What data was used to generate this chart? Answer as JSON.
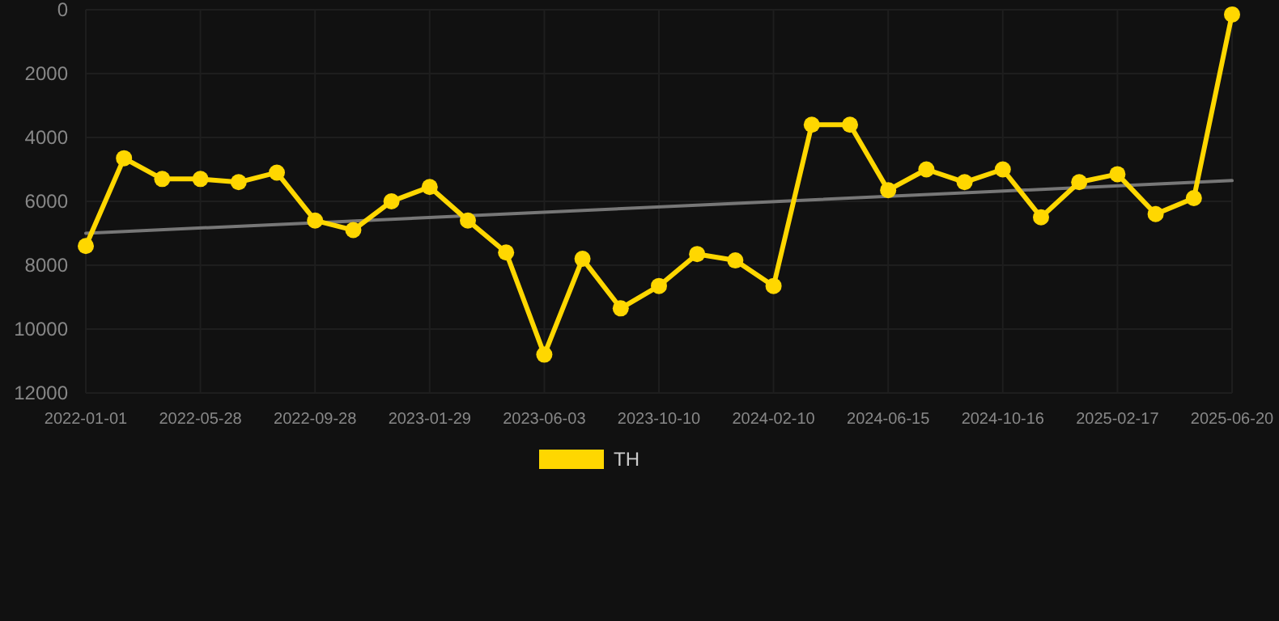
{
  "chart_data": {
    "type": "line",
    "categories": [
      "2022-01-01",
      null,
      null,
      "2022-05-28",
      null,
      null,
      "2022-09-28",
      null,
      null,
      "2023-01-29",
      null,
      null,
      "2023-06-03",
      null,
      null,
      "2023-10-10",
      null,
      null,
      "2024-02-10",
      null,
      null,
      "2024-06-15",
      null,
      null,
      "2024-10-16",
      null,
      null,
      "2025-02-17",
      null,
      null,
      "2025-06-20"
    ],
    "series": [
      {
        "name": "TH",
        "color": "#ffd700",
        "values": [
          7400,
          4650,
          5300,
          5300,
          5400,
          5100,
          6600,
          6900,
          6000,
          5550,
          6600,
          7600,
          10800,
          7800,
          9350,
          8650,
          7650,
          7850,
          8650,
          3600,
          3600,
          5650,
          5000,
          5400,
          5000,
          6500,
          5400,
          5150,
          6400,
          5900,
          150
        ]
      },
      {
        "type": "line",
        "color": "#777777",
        "marker": "none",
        "values": [
          7000,
          null,
          null,
          null,
          null,
          null,
          null,
          null,
          null,
          null,
          null,
          null,
          null,
          null,
          null,
          null,
          null,
          null,
          null,
          null,
          null,
          null,
          null,
          null,
          null,
          null,
          null,
          null,
          null,
          null,
          5350
        ]
      }
    ],
    "ylim": [
      12000,
      0
    ],
    "yticks": [
      0,
      2000,
      4000,
      6000,
      8000,
      10000,
      12000
    ],
    "grid": true,
    "legend": "bottom",
    "marker": "circle",
    "line_style": "solid"
  }
}
